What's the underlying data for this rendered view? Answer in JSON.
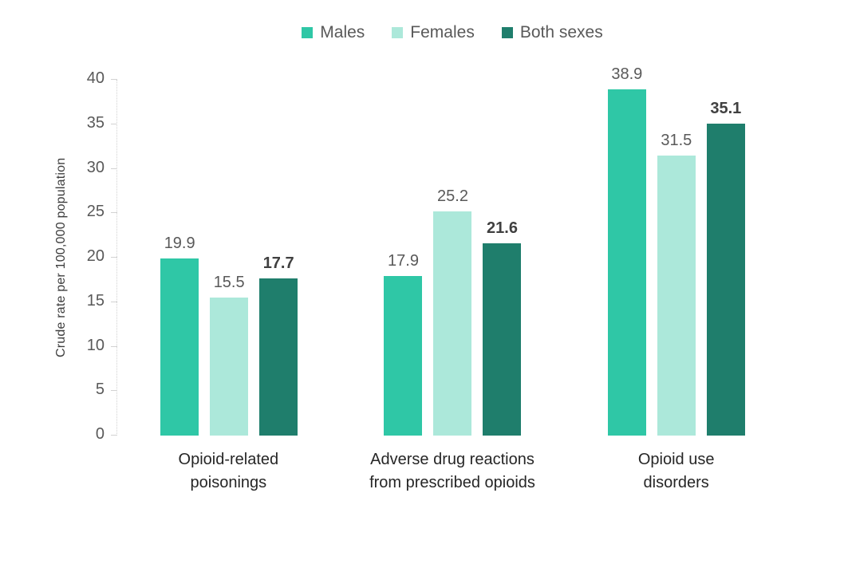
{
  "chart_data": {
    "type": "bar",
    "categories": [
      [
        "Opioid-related",
        "poisonings"
      ],
      [
        "Adverse drug reactions",
        "from prescribed opioids"
      ],
      [
        "Opioid use",
        "disorders"
      ]
    ],
    "series": [
      {
        "name": "Males",
        "color": "#2fc7a6",
        "values": [
          19.9,
          17.9,
          38.9
        ],
        "emphasized": false
      },
      {
        "name": "Females",
        "color": "#ace8da",
        "values": [
          15.5,
          25.2,
          31.5
        ],
        "emphasized": false
      },
      {
        "name": "Both sexes",
        "color": "#1f7e6c",
        "values": [
          17.7,
          21.6,
          35.1
        ],
        "emphasized": true
      }
    ],
    "value_labels": [
      [
        "19.9",
        "17.9",
        "38.9"
      ],
      [
        "15.5",
        "25.2",
        "31.5"
      ],
      [
        "17.7",
        "21.6",
        "35.1"
      ]
    ],
    "title": "",
    "xlabel": "",
    "ylabel": "Crude rate per 100,000 population",
    "ylim": [
      0,
      40
    ],
    "yticks": [
      0,
      5,
      10,
      15,
      20,
      25,
      30,
      35,
      40
    ],
    "grid": false,
    "legend_position": "top",
    "colors": {
      "axis_line": "#d2d2d2",
      "tick_text": "#595959",
      "value_text": "#595959",
      "emphasized_value_text": "#404040",
      "category_text": "#262626",
      "ylabel_text": "#3d3d3d"
    }
  }
}
